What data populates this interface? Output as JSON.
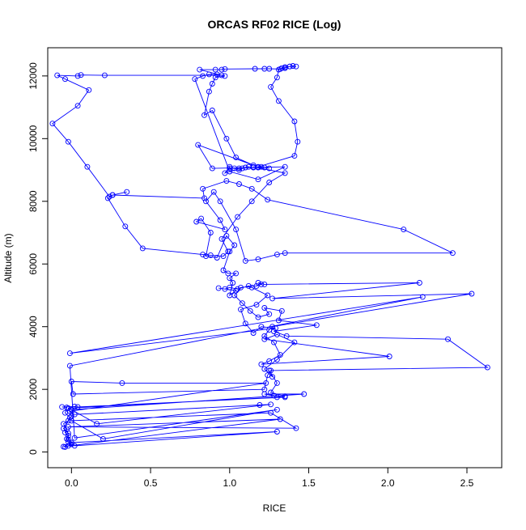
{
  "chart_data": {
    "type": "line",
    "title": "ORCAS RF02 RICE (Log)",
    "xlabel": "RICE",
    "ylabel": "Altitude (m)",
    "xlim": [
      -0.15,
      2.72
    ],
    "ylim": [
      -500,
      12900
    ],
    "xticks": [
      0.0,
      0.5,
      1.0,
      1.5,
      2.0,
      2.5
    ],
    "xtick_labels": [
      "0.0",
      "0.5",
      "1.0",
      "1.5",
      "2.0",
      "2.5"
    ],
    "yticks": [
      0,
      2000,
      4000,
      6000,
      8000,
      10000,
      12000
    ],
    "ytick_labels": [
      "0",
      "2000",
      "4000",
      "6000",
      "8000",
      "10000",
      "12000"
    ],
    "grid": false,
    "series": [
      {
        "color": "#0000ff",
        "marker": "open-circle",
        "points": [
          [
            -0.04,
            160
          ],
          [
            -0.02,
            200
          ],
          [
            0.0,
            250
          ],
          [
            -0.02,
            320
          ],
          [
            -0.03,
            420
          ],
          [
            -0.02,
            520
          ],
          [
            -0.04,
            620
          ],
          [
            -0.03,
            720
          ],
          [
            -0.05,
            900
          ],
          [
            -0.02,
            1000
          ],
          [
            -0.01,
            1100
          ],
          [
            -0.04,
            1250
          ],
          [
            -0.03,
            1420
          ],
          [
            -0.06,
            1440
          ],
          [
            0.02,
            1450
          ],
          [
            0.04,
            1440
          ],
          [
            1.35,
            1750
          ],
          [
            1.28,
            1800
          ],
          [
            1.22,
            1850
          ],
          [
            1.47,
            1850
          ],
          [
            0.0,
            1350
          ],
          [
            0.16,
            900
          ],
          [
            1.26,
            1520
          ],
          [
            1.19,
            1500
          ],
          [
            0.02,
            1200
          ],
          [
            -0.01,
            1300
          ],
          [
            1.23,
            2200
          ],
          [
            0.32,
            2200
          ],
          [
            0.0,
            2250
          ],
          [
            0.01,
            1850
          ],
          [
            1.22,
            2000
          ],
          [
            1.24,
            2450
          ],
          [
            1.26,
            2600
          ],
          [
            2.63,
            2700
          ],
          [
            2.38,
            3600
          ],
          [
            1.36,
            3700
          ],
          [
            1.28,
            3850
          ],
          [
            1.55,
            4050
          ],
          [
            1.31,
            4200
          ],
          [
            1.33,
            4500
          ],
          [
            1.22,
            4600
          ],
          [
            1.25,
            4400
          ],
          [
            1.18,
            4300
          ],
          [
            1.13,
            4500
          ],
          [
            1.08,
            4750
          ],
          [
            1.03,
            5000
          ],
          [
            1.07,
            5250
          ],
          [
            1.17,
            5300
          ],
          [
            1.2,
            5350
          ],
          [
            1.18,
            5400
          ],
          [
            1.22,
            5350
          ],
          [
            2.2,
            5400
          ],
          [
            1.27,
            4900
          ],
          [
            2.53,
            5050
          ],
          [
            1.27,
            4000
          ],
          [
            1.25,
            3900
          ],
          [
            1.22,
            3700
          ],
          [
            1.28,
            3500
          ],
          [
            1.32,
            3100
          ],
          [
            1.25,
            2900
          ],
          [
            1.2,
            2800
          ],
          [
            2.01,
            3050
          ],
          [
            1.22,
            3600
          ],
          [
            1.3,
            3750
          ],
          [
            1.41,
            3500
          ],
          [
            1.3,
            2950
          ],
          [
            1.22,
            2650
          ],
          [
            1.27,
            2400
          ],
          [
            1.25,
            2600
          ],
          [
            1.3,
            2200
          ],
          [
            1.26,
            1900
          ],
          [
            1.35,
            1780
          ],
          [
            1.3,
            1750
          ],
          [
            -0.02,
            1400
          ],
          [
            0.0,
            1150
          ],
          [
            -0.05,
            750
          ],
          [
            -0.02,
            600
          ],
          [
            -0.02,
            400
          ],
          [
            0.02,
            200
          ],
          [
            1.3,
            650
          ],
          [
            0.0,
            300
          ],
          [
            -0.05,
            170
          ],
          [
            1.32,
            1050
          ],
          [
            -0.02,
            800
          ],
          [
            1.42,
            760
          ],
          [
            1.26,
            1250
          ],
          [
            0.0,
            1000
          ],
          [
            0.2,
            420
          ],
          [
            1.3,
            1350
          ],
          [
            0.02,
            450
          ],
          [
            -0.01,
            2750
          ],
          [
            2.22,
            4950
          ],
          [
            -0.01,
            3150
          ],
          [
            1.29,
            3950
          ],
          [
            1.2,
            4000
          ],
          [
            1.15,
            3800
          ],
          [
            1.1,
            4100
          ],
          [
            1.07,
            4550
          ],
          [
            1.17,
            4700
          ],
          [
            1.24,
            5000
          ],
          [
            1.14,
            5250
          ],
          [
            1.12,
            5300
          ],
          [
            1.05,
            5200
          ],
          [
            1.0,
            5250
          ],
          [
            0.97,
            5200
          ],
          [
            0.93,
            5230
          ],
          [
            1.04,
            5150
          ],
          [
            1.0,
            5000
          ],
          [
            1.02,
            5400
          ],
          [
            1.0,
            5550
          ],
          [
            1.04,
            5700
          ],
          [
            0.99,
            5700
          ],
          [
            0.96,
            5800
          ],
          [
            1.0,
            6400
          ],
          [
            1.03,
            6600
          ],
          [
            0.98,
            6900
          ],
          [
            0.92,
            6200
          ],
          [
            0.85,
            6250
          ],
          [
            0.88,
            7000
          ],
          [
            0.82,
            7450
          ],
          [
            0.79,
            7350
          ],
          [
            0.97,
            7100
          ],
          [
            0.94,
            7400
          ],
          [
            0.85,
            8000
          ],
          [
            0.9,
            8300
          ],
          [
            0.94,
            8000
          ],
          [
            1.04,
            7100
          ],
          [
            1.1,
            6100
          ],
          [
            1.18,
            6150
          ],
          [
            1.3,
            6300
          ],
          [
            1.35,
            6350
          ],
          [
            2.41,
            6350
          ],
          [
            2.1,
            7100
          ],
          [
            1.24,
            8050
          ],
          [
            1.14,
            8400
          ],
          [
            1.06,
            8550
          ],
          [
            0.98,
            8650
          ],
          [
            0.83,
            8400
          ],
          [
            0.84,
            8100
          ],
          [
            0.26,
            8200
          ],
          [
            0.23,
            8100
          ],
          [
            0.34,
            7200
          ],
          [
            0.45,
            6500
          ],
          [
            0.83,
            6300
          ],
          [
            0.88,
            6280
          ],
          [
            0.96,
            6250
          ],
          [
            0.99,
            6400
          ],
          [
            0.95,
            6800
          ],
          [
            1.05,
            7500
          ],
          [
            1.14,
            8000
          ],
          [
            1.25,
            8600
          ],
          [
            1.35,
            8900
          ],
          [
            1.15,
            9100
          ],
          [
            1.2,
            9100
          ],
          [
            1.25,
            9050
          ],
          [
            1.22,
            9080
          ],
          [
            1.18,
            9080
          ],
          [
            1.15,
            9080
          ],
          [
            1.12,
            9100
          ],
          [
            1.1,
            9080
          ],
          [
            1.08,
            9050
          ],
          [
            1.06,
            9000
          ],
          [
            1.03,
            9050
          ],
          [
            1.0,
            9050
          ],
          [
            1.0,
            9100
          ],
          [
            0.97,
            8900
          ],
          [
            1.06,
            9050
          ],
          [
            1.18,
            9100
          ],
          [
            1.41,
            9450
          ],
          [
            1.43,
            9900
          ],
          [
            1.41,
            10550
          ],
          [
            1.31,
            11200
          ],
          [
            1.26,
            11650
          ],
          [
            1.3,
            11950
          ],
          [
            1.31,
            12200
          ],
          [
            1.33,
            12250
          ],
          [
            1.35,
            12280
          ],
          [
            1.38,
            12300
          ],
          [
            1.4,
            12320
          ],
          [
            1.42,
            12300
          ],
          [
            1.38,
            12300
          ],
          [
            1.35,
            12250
          ],
          [
            1.32,
            12220
          ],
          [
            1.25,
            12230
          ],
          [
            1.22,
            12230
          ],
          [
            1.16,
            12230
          ],
          [
            0.97,
            12220
          ],
          [
            0.95,
            12200
          ],
          [
            0.91,
            12200
          ],
          [
            0.81,
            12200
          ],
          [
            0.97,
            12000
          ],
          [
            0.91,
            11950
          ],
          [
            0.89,
            11750
          ],
          [
            0.87,
            11500
          ],
          [
            0.84,
            10750
          ],
          [
            0.89,
            10900
          ],
          [
            0.98,
            10000
          ],
          [
            1.04,
            9400
          ],
          [
            1.15,
            9150
          ],
          [
            0.8,
            9800
          ],
          [
            0.89,
            9050
          ],
          [
            1.35,
            9100
          ],
          [
            1.18,
            8700
          ],
          [
            1.0,
            8950
          ],
          [
            0.78,
            11900
          ],
          [
            0.83,
            12000
          ],
          [
            0.87,
            12050
          ],
          [
            0.92,
            12050
          ],
          [
            0.95,
            12020
          ],
          [
            0.21,
            12020
          ],
          [
            0.06,
            12030
          ],
          [
            0.04,
            12000
          ],
          [
            -0.09,
            12020
          ],
          [
            -0.04,
            11900
          ],
          [
            0.11,
            11550
          ],
          [
            0.04,
            11050
          ],
          [
            -0.12,
            10480
          ],
          [
            -0.02,
            9900
          ],
          [
            0.1,
            9100
          ],
          [
            0.24,
            8150
          ],
          [
            0.26,
            8200
          ],
          [
            0.35,
            8300
          ]
        ]
      }
    ]
  }
}
